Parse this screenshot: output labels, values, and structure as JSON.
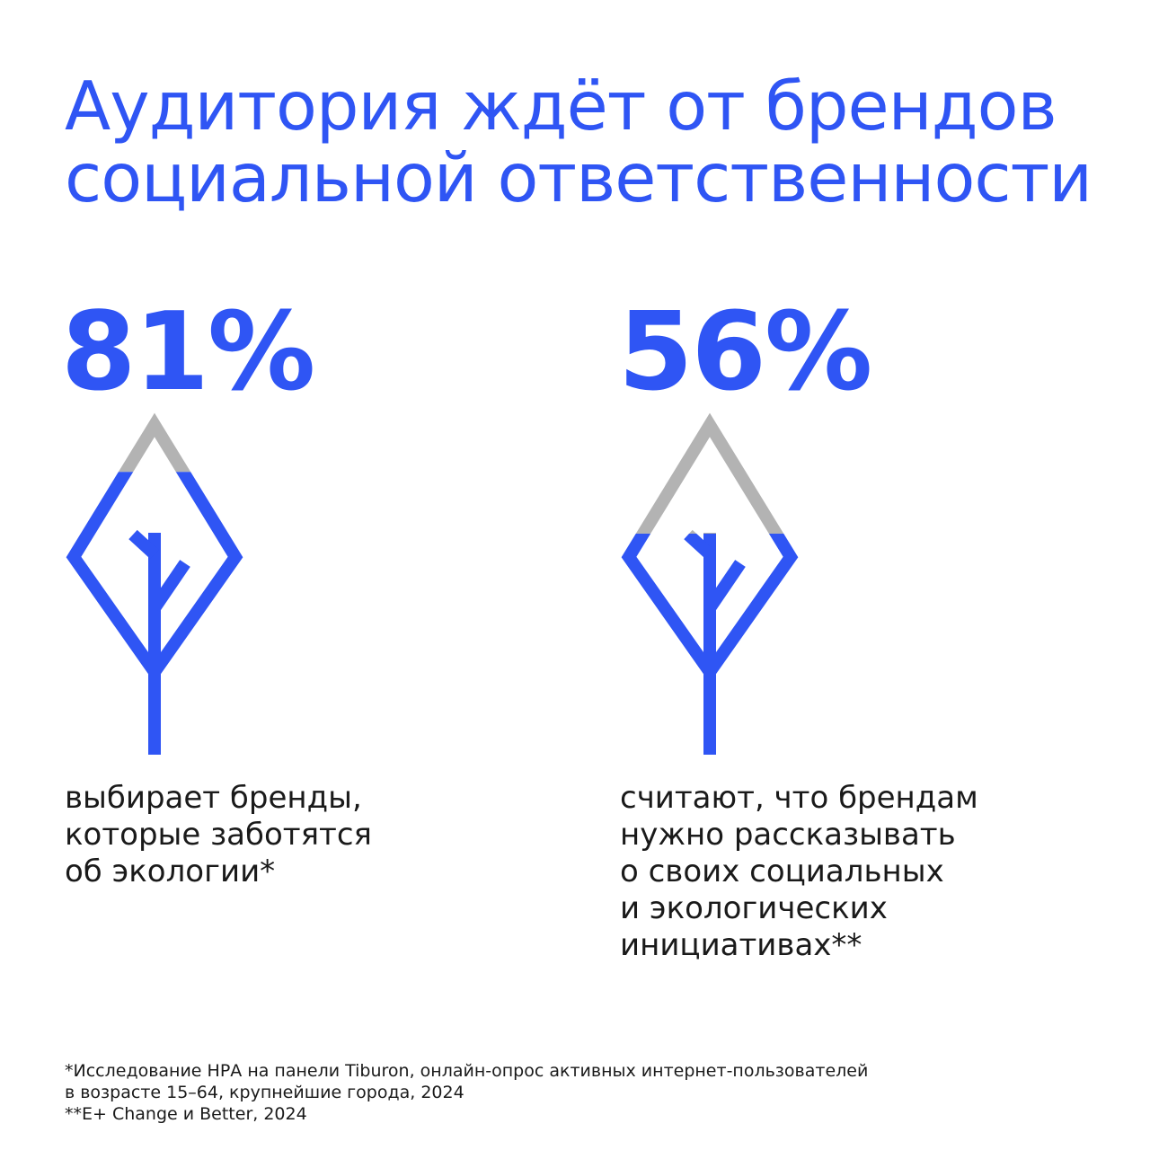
{
  "title": {
    "line1": "Аудитория ждёт от брендов",
    "line2": "социальной ответственности"
  },
  "stats": [
    {
      "value": "81%",
      "fill_fraction": 0.81,
      "caption": [
        "выбирает бренды,",
        "которые заботятся",
        "об экологии*"
      ]
    },
    {
      "value": "56%",
      "fill_fraction": 0.56,
      "caption": [
        "считают, что брендам",
        "нужно рассказывать",
        "о своих социальных",
        "и экологических",
        "инициативах**"
      ]
    }
  ],
  "footnotes": {
    "line1": "*Исследование НРА на панели Tiburon, онлайн-опрос активных интернет-пользователей",
    "line2": "в возрасте 15–64, крупнейшие города, 2024",
    "line3": "**E+ Change и Better, 2024"
  },
  "colors": {
    "accent": "#2f55f4",
    "empty": "#b3b3b3",
    "text": "#1a1a1a"
  },
  "icon": "tree-leaf-icon"
}
